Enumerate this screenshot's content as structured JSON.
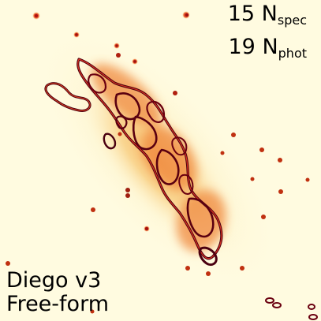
{
  "counts": {
    "spec_number": "15",
    "spec_symbol": "N",
    "spec_subscript": "spec",
    "phot_number": "19",
    "phot_symbol": "N",
    "phot_subscript": "phot"
  },
  "model": {
    "name": "Diego v3",
    "type": "Free-form"
  },
  "colors": {
    "background": "#fffbe0",
    "halo": "#f8c873",
    "contour_orange": "#e85a20",
    "contour_red": "#b01020",
    "contour_dark": "#4a0010"
  }
}
